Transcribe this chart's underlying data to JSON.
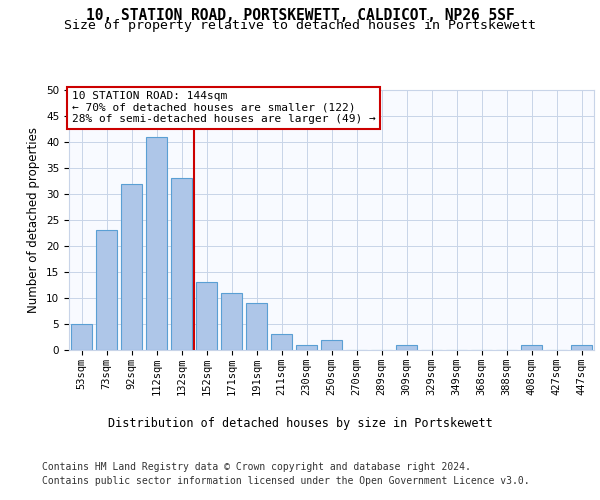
{
  "title_line1": "10, STATION ROAD, PORTSKEWETT, CALDICOT, NP26 5SF",
  "title_line2": "Size of property relative to detached houses in Portskewett",
  "xlabel": "Distribution of detached houses by size in Portskewett",
  "ylabel": "Number of detached properties",
  "categories": [
    "53sqm",
    "73sqm",
    "92sqm",
    "112sqm",
    "132sqm",
    "152sqm",
    "171sqm",
    "191sqm",
    "211sqm",
    "230sqm",
    "250sqm",
    "270sqm",
    "289sqm",
    "309sqm",
    "329sqm",
    "349sqm",
    "368sqm",
    "388sqm",
    "408sqm",
    "427sqm",
    "447sqm"
  ],
  "values": [
    5,
    23,
    32,
    41,
    33,
    13,
    11,
    9,
    3,
    1,
    2,
    0,
    0,
    1,
    0,
    0,
    0,
    0,
    1,
    0,
    1
  ],
  "bar_color": "#aec6e8",
  "bar_edge_color": "#5a9fd4",
  "vline_x_idx": 4.5,
  "vline_color": "#cc0000",
  "annotation_text": "10 STATION ROAD: 144sqm\n← 70% of detached houses are smaller (122)\n28% of semi-detached houses are larger (49) →",
  "annotation_box_color": "#ffffff",
  "annotation_box_edge": "#cc0000",
  "ylim": [
    0,
    50
  ],
  "yticks": [
    0,
    5,
    10,
    15,
    20,
    25,
    30,
    35,
    40,
    45,
    50
  ],
  "footer_line1": "Contains HM Land Registry data © Crown copyright and database right 2024.",
  "footer_line2": "Contains public sector information licensed under the Open Government Licence v3.0.",
  "plot_bg_color": "#f8faff",
  "grid_color": "#c8d4e8",
  "title_fontsize": 10.5,
  "subtitle_fontsize": 9.5,
  "axis_label_fontsize": 8.5,
  "tick_fontsize": 7.5,
  "annotation_fontsize": 8,
  "footer_fontsize": 7
}
